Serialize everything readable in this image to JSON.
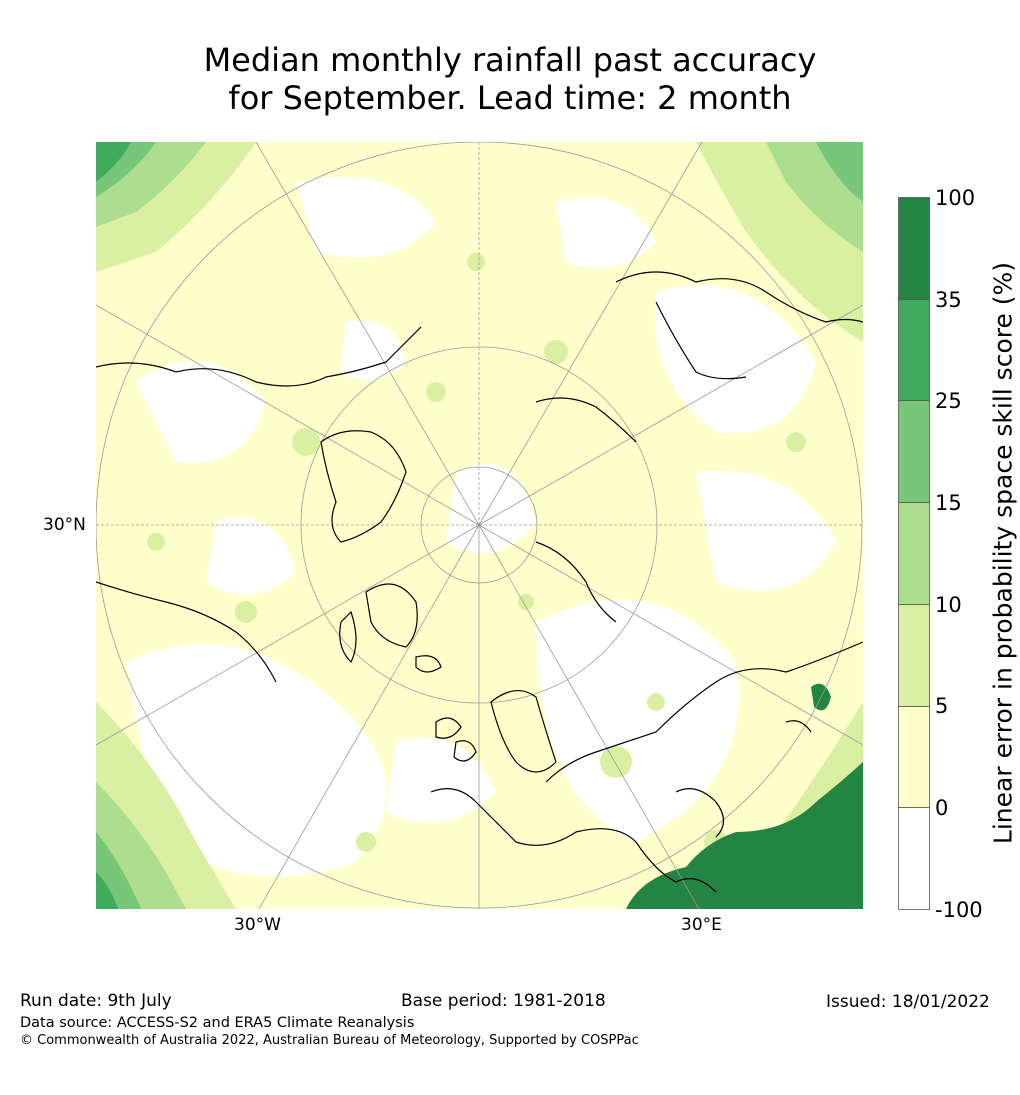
{
  "title": {
    "line1": "Median monthly rainfall past accuracy",
    "line2": "for September. Lead time: 2 month"
  },
  "map": {
    "projection": "north-polar-stereographic",
    "axis_labels": {
      "left": "30°N",
      "bottom_left": "30°W",
      "bottom_right": "30°E"
    },
    "land_outline_color": "#000000",
    "graticule_color": "#9a9a9a",
    "bins_colors": [
      "#ffffff",
      "#ffffcc",
      "#d9f0a3",
      "#addd8e",
      "#78c679",
      "#41ab5d",
      "#238443"
    ]
  },
  "colorbar": {
    "label": "Linear error in probability space skill score (%)",
    "ticks": [
      "100",
      "35",
      "25",
      "15",
      "10",
      "5",
      "0",
      "-100"
    ],
    "bins": [
      {
        "range": "-100 to 0",
        "color": "#ffffff"
      },
      {
        "range": "0 to 5",
        "color": "#ffffcc"
      },
      {
        "range": "5 to 10",
        "color": "#d9f0a3"
      },
      {
        "range": "10 to 15",
        "color": "#addd8e"
      },
      {
        "range": "15 to 25",
        "color": "#78c679"
      },
      {
        "range": "25 to 35",
        "color": "#41ab5d"
      },
      {
        "range": "35 to 100",
        "color": "#238443"
      }
    ]
  },
  "footer": {
    "run_date": "Run date: 9th July",
    "base_period": "Base period: 1981-2018",
    "issued": "Issued: 18/01/2022",
    "data_source": "Data source: ACCESS-S2 and ERA5 Climate Reanalysis",
    "copyright": "© Commonwealth of Australia 2022, Australian Bureau of Meteorology, Supported by COSPPac"
  }
}
